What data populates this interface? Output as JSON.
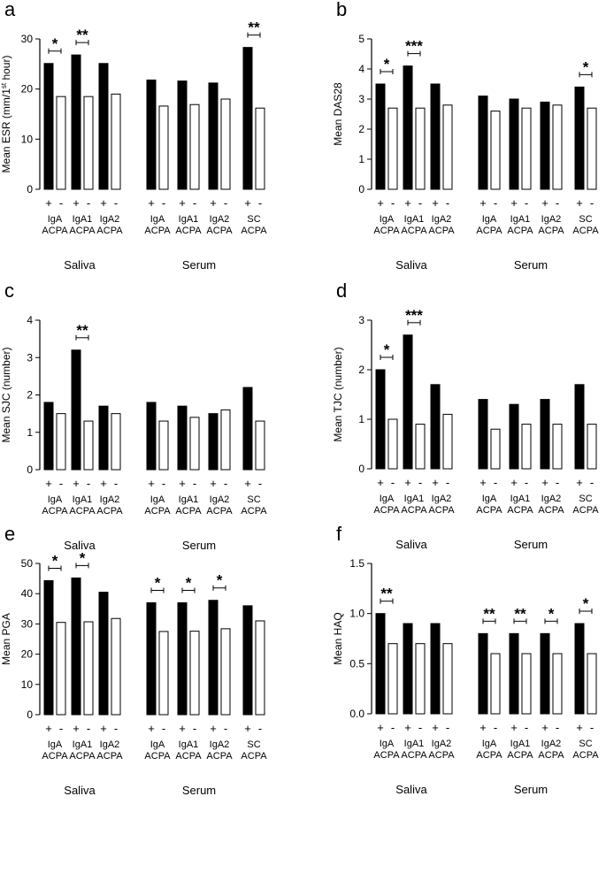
{
  "figure": {
    "group_sample": [
      "Saliva",
      "Serum"
    ],
    "sign_positive": "+",
    "sign_negative": "-",
    "colors": {
      "positive": "#000000",
      "negative": "#ffffff",
      "axis": "#000000"
    }
  },
  "chart_data": [
    {
      "type": "bar",
      "panel_letter": "a",
      "ylabel": "Mean ESR (mm/1st hour)",
      "ylim": [
        0,
        30
      ],
      "yticks": [
        0,
        10,
        20,
        30
      ],
      "categories": [
        "IgA ACPA",
        "IgA1 ACPA",
        "IgA2 ACPA",
        "IgA ACPA",
        "IgA1 ACPA",
        "IgA2 ACPA",
        "SC ACPA"
      ],
      "groups": [
        "Saliva",
        "Saliva",
        "Saliva",
        "Serum",
        "Serum",
        "Serum",
        "Serum"
      ],
      "series": [
        {
          "name": "ACPA+",
          "values": [
            25.1,
            26.8,
            25.1,
            21.8,
            21.6,
            21.2,
            28.3
          ]
        },
        {
          "name": "ACPA-",
          "values": [
            18.5,
            18.5,
            19.0,
            16.6,
            16.9,
            18.0,
            16.2
          ]
        }
      ],
      "significance": [
        "*",
        "**",
        "",
        "",
        "",
        "",
        "**"
      ]
    },
    {
      "type": "bar",
      "panel_letter": "b",
      "ylabel": "Mean DAS28",
      "ylim": [
        0,
        5
      ],
      "yticks": [
        0,
        1,
        2,
        3,
        4,
        5
      ],
      "categories": [
        "IgA ACPA",
        "IgA1 ACPA",
        "IgA2 ACPA",
        "IgA ACPA",
        "IgA1 ACPA",
        "IgA2 ACPA",
        "SC ACPA"
      ],
      "groups": [
        "Saliva",
        "Saliva",
        "Saliva",
        "Serum",
        "Serum",
        "Serum",
        "Serum"
      ],
      "series": [
        {
          "name": "ACPA+",
          "values": [
            3.5,
            4.1,
            3.5,
            3.1,
            3.0,
            2.9,
            3.4
          ]
        },
        {
          "name": "ACPA-",
          "values": [
            2.7,
            2.7,
            2.8,
            2.6,
            2.7,
            2.8,
            2.7
          ]
        }
      ],
      "significance": [
        "*",
        "***",
        "",
        "",
        "",
        "",
        "*"
      ]
    },
    {
      "type": "bar",
      "panel_letter": "c",
      "ylabel": "Mean SJC (number)",
      "ylim": [
        0,
        4
      ],
      "yticks": [
        0,
        1,
        2,
        3,
        4
      ],
      "categories": [
        "IgA ACPA",
        "IgA1 ACPA",
        "IgA2 ACPA",
        "IgA ACPA",
        "IgA1 ACPA",
        "IgA2 ACPA",
        "SC ACPA"
      ],
      "groups": [
        "Saliva",
        "Saliva",
        "Saliva",
        "Serum",
        "Serum",
        "Serum",
        "Serum"
      ],
      "series": [
        {
          "name": "ACPA+",
          "values": [
            1.8,
            3.2,
            1.7,
            1.8,
            1.7,
            1.5,
            2.2
          ]
        },
        {
          "name": "ACPA-",
          "values": [
            1.5,
            1.3,
            1.5,
            1.3,
            1.4,
            1.6,
            1.3
          ]
        }
      ],
      "significance": [
        "",
        "**",
        "",
        "",
        "",
        "",
        ""
      ]
    },
    {
      "type": "bar",
      "panel_letter": "d",
      "ylabel": "Mean TJC (number)",
      "ylim": [
        0,
        3
      ],
      "yticks": [
        0,
        1,
        2,
        3
      ],
      "categories": [
        "IgA ACPA",
        "IgA1 ACPA",
        "IgA2 ACPA",
        "IgA ACPA",
        "IgA1 ACPA",
        "IgA2 ACPA",
        "SC ACPA"
      ],
      "groups": [
        "Saliva",
        "Saliva",
        "Saliva",
        "Serum",
        "Serum",
        "Serum",
        "Serum"
      ],
      "series": [
        {
          "name": "ACPA+",
          "values": [
            2.0,
            2.7,
            1.7,
            1.4,
            1.3,
            1.4,
            1.7
          ]
        },
        {
          "name": "ACPA-",
          "values": [
            1.0,
            0.9,
            1.1,
            0.8,
            0.9,
            0.9,
            0.9
          ]
        }
      ],
      "significance": [
        "*",
        "***",
        "",
        "",
        "",
        "",
        ""
      ]
    },
    {
      "type": "bar",
      "panel_letter": "e",
      "ylabel": "Mean PGA",
      "ylim": [
        0,
        50
      ],
      "yticks": [
        0,
        10,
        20,
        30,
        40,
        50
      ],
      "categories": [
        "IgA ACPA",
        "IgA1 ACPA",
        "IgA2 ACPA",
        "IgA ACPA",
        "IgA1 ACPA",
        "IgA2 ACPA",
        "SC ACPA"
      ],
      "groups": [
        "Saliva",
        "Saliva",
        "Saliva",
        "Serum",
        "Serum",
        "Serum",
        "Serum"
      ],
      "series": [
        {
          "name": "ACPA+",
          "values": [
            44.3,
            45.2,
            40.5,
            37.0,
            37.0,
            37.8,
            36.0
          ]
        },
        {
          "name": "ACPA-",
          "values": [
            30.5,
            30.7,
            31.8,
            27.5,
            27.6,
            28.4,
            31.0
          ]
        }
      ],
      "significance": [
        "*",
        "*",
        "",
        "*",
        "*",
        "*",
        ""
      ]
    },
    {
      "type": "bar",
      "panel_letter": "f",
      "ylabel": "Mean HAQ",
      "ylim": [
        0,
        1.5
      ],
      "yticks": [
        "0.0",
        "0.5",
        "1.0",
        "1.5"
      ],
      "categories": [
        "IgA ACPA",
        "IgA1 ACPA",
        "IgA2 ACPA",
        "IgA ACPA",
        "IgA1 ACPA",
        "IgA2 ACPA",
        "SC ACPA"
      ],
      "groups": [
        "Saliva",
        "Saliva",
        "Saliva",
        "Serum",
        "Serum",
        "Serum",
        "Serum"
      ],
      "series": [
        {
          "name": "ACPA+",
          "values": [
            1.0,
            0.9,
            0.9,
            0.8,
            0.8,
            0.8,
            0.9
          ]
        },
        {
          "name": "ACPA-",
          "values": [
            0.7,
            0.7,
            0.7,
            0.6,
            0.6,
            0.6,
            0.6
          ]
        }
      ],
      "significance": [
        "**",
        "",
        "",
        "**",
        "**",
        "*",
        "*"
      ]
    }
  ]
}
